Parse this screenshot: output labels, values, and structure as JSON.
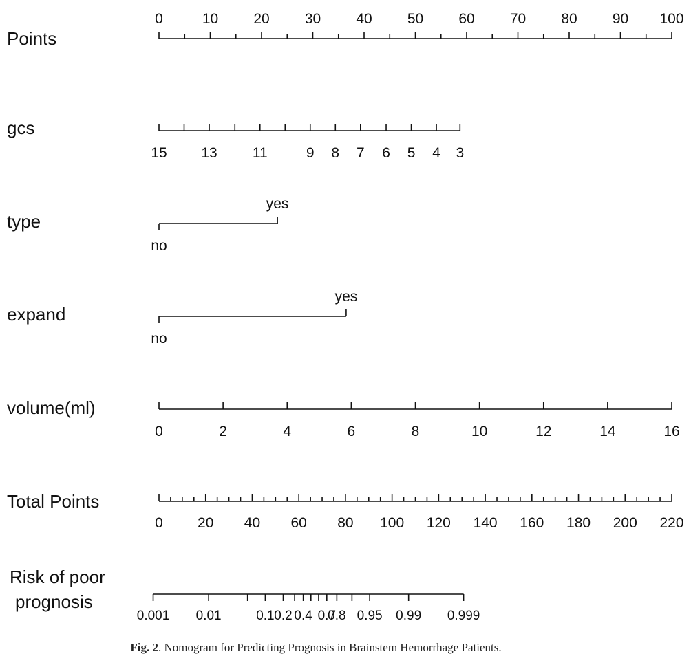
{
  "chart_data": {
    "type": "nomogram",
    "rows": [
      {
        "id": "points",
        "label": "Points",
        "min": 0,
        "max": 100,
        "ticks": [
          0,
          5,
          10,
          15,
          20,
          25,
          30,
          35,
          40,
          45,
          50,
          55,
          60,
          65,
          70,
          75,
          80,
          85,
          90,
          95,
          100
        ],
        "labels": [
          "0",
          "10",
          "20",
          "30",
          "40",
          "50",
          "60",
          "70",
          "80",
          "90",
          "100"
        ],
        "label_values": [
          0,
          10,
          20,
          30,
          40,
          50,
          60,
          70,
          80,
          90,
          100
        ]
      },
      {
        "id": "gcs",
        "label": "gcs",
        "ticks": [
          {
            "value": "15",
            "points": 0
          },
          {
            "value": "14",
            "points": 4.9
          },
          {
            "value": "13",
            "points": 9.8
          },
          {
            "value": "12",
            "points": 14.8
          },
          {
            "value": "11",
            "points": 19.7
          },
          {
            "value": "10",
            "points": 24.6
          },
          {
            "value": "9",
            "points": 29.5
          },
          {
            "value": "8",
            "points": 34.4
          },
          {
            "value": "7",
            "points": 39.3
          },
          {
            "value": "6",
            "points": 44.3
          },
          {
            "value": "5",
            "points": 49.2
          },
          {
            "value": "4",
            "points": 54.1
          },
          {
            "value": "3",
            "points": 58.7
          }
        ],
        "labels": [
          "15",
          "13",
          "11",
          "9",
          "8",
          "7",
          "6",
          "5",
          "4",
          "3"
        ]
      },
      {
        "id": "type",
        "label": "type",
        "categories": [
          "no",
          "yes"
        ],
        "points": [
          0,
          23.1
        ]
      },
      {
        "id": "expand",
        "label": "expand",
        "categories": [
          "no",
          "yes"
        ],
        "points": [
          0,
          36.5
        ]
      },
      {
        "id": "volume",
        "label": "volume(ml)",
        "min": 0,
        "max": 16,
        "points_at_max": 100,
        "ticks": [
          0,
          2,
          4,
          6,
          8,
          10,
          12,
          14,
          16
        ],
        "labels": [
          "0",
          "2",
          "4",
          "6",
          "8",
          "10",
          "12",
          "14",
          "16"
        ]
      },
      {
        "id": "total",
        "label": "Total Points",
        "min": 0,
        "max": 220,
        "ticks": [
          0,
          5,
          10,
          15,
          20,
          25,
          30,
          35,
          40,
          45,
          50,
          55,
          60,
          65,
          70,
          75,
          80,
          85,
          90,
          95,
          100,
          105,
          110,
          115,
          120,
          125,
          130,
          135,
          140,
          145,
          150,
          155,
          160,
          165,
          170,
          175,
          180,
          185,
          190,
          195,
          200,
          205,
          210,
          215,
          220
        ],
        "labels": [
          "0",
          "20",
          "40",
          "60",
          "80",
          "100",
          "120",
          "140",
          "160",
          "180",
          "200",
          "220"
        ],
        "label_values": [
          0,
          20,
          40,
          60,
          80,
          100,
          120,
          140,
          160,
          180,
          200,
          220
        ]
      },
      {
        "id": "risk",
        "label_line1": "Risk of poor",
        "label_line2": "prognosis",
        "ticks": [
          {
            "value": "0.001",
            "total": -2.5
          },
          {
            "value": "0.01",
            "total": 21.3
          },
          {
            "value": "0.05",
            "total": 38.0
          },
          {
            "value": "0.1",
            "total": 45.6
          },
          {
            "value": "0.2",
            "total": 53.3
          },
          {
            "value": "0.3",
            "total": 58.2
          },
          {
            "value": "0.4",
            "total": 61.9
          },
          {
            "value": "0.5",
            "total": 65.2
          },
          {
            "value": "0.6",
            "total": 68.5
          },
          {
            "value": "0.7",
            "total": 72.0
          },
          {
            "value": "0.8",
            "total": 76.3
          },
          {
            "value": "0.9",
            "total": 82.8
          },
          {
            "value": "0.95",
            "total": 90.4
          },
          {
            "value": "0.99",
            "total": 107.1
          },
          {
            "value": "0.999",
            "total": 130.7
          }
        ],
        "labels": [
          {
            "text": "0.001",
            "total": -2.5
          },
          {
            "text": "0.01",
            "total": 21.3
          },
          {
            "text": "0.1",
            "total": 45.6
          },
          {
            "text": "0.2",
            "total": 53.3
          },
          {
            "text": "0.4",
            "total": 61.9
          },
          {
            "text": "0.7",
            "total": 72.0
          },
          {
            "text": "0.8",
            "total": 76.3
          },
          {
            "text": "0.95",
            "total": 90.4
          },
          {
            "text": "0.99",
            "total": 107.1
          },
          {
            "text": "0.999",
            "total": 130.7
          }
        ]
      }
    ]
  },
  "caption": {
    "label": "Fig. 2",
    "text": ".  Nomogram for Predicting Prognosis in Brainstem Hemorrhage Patients."
  }
}
